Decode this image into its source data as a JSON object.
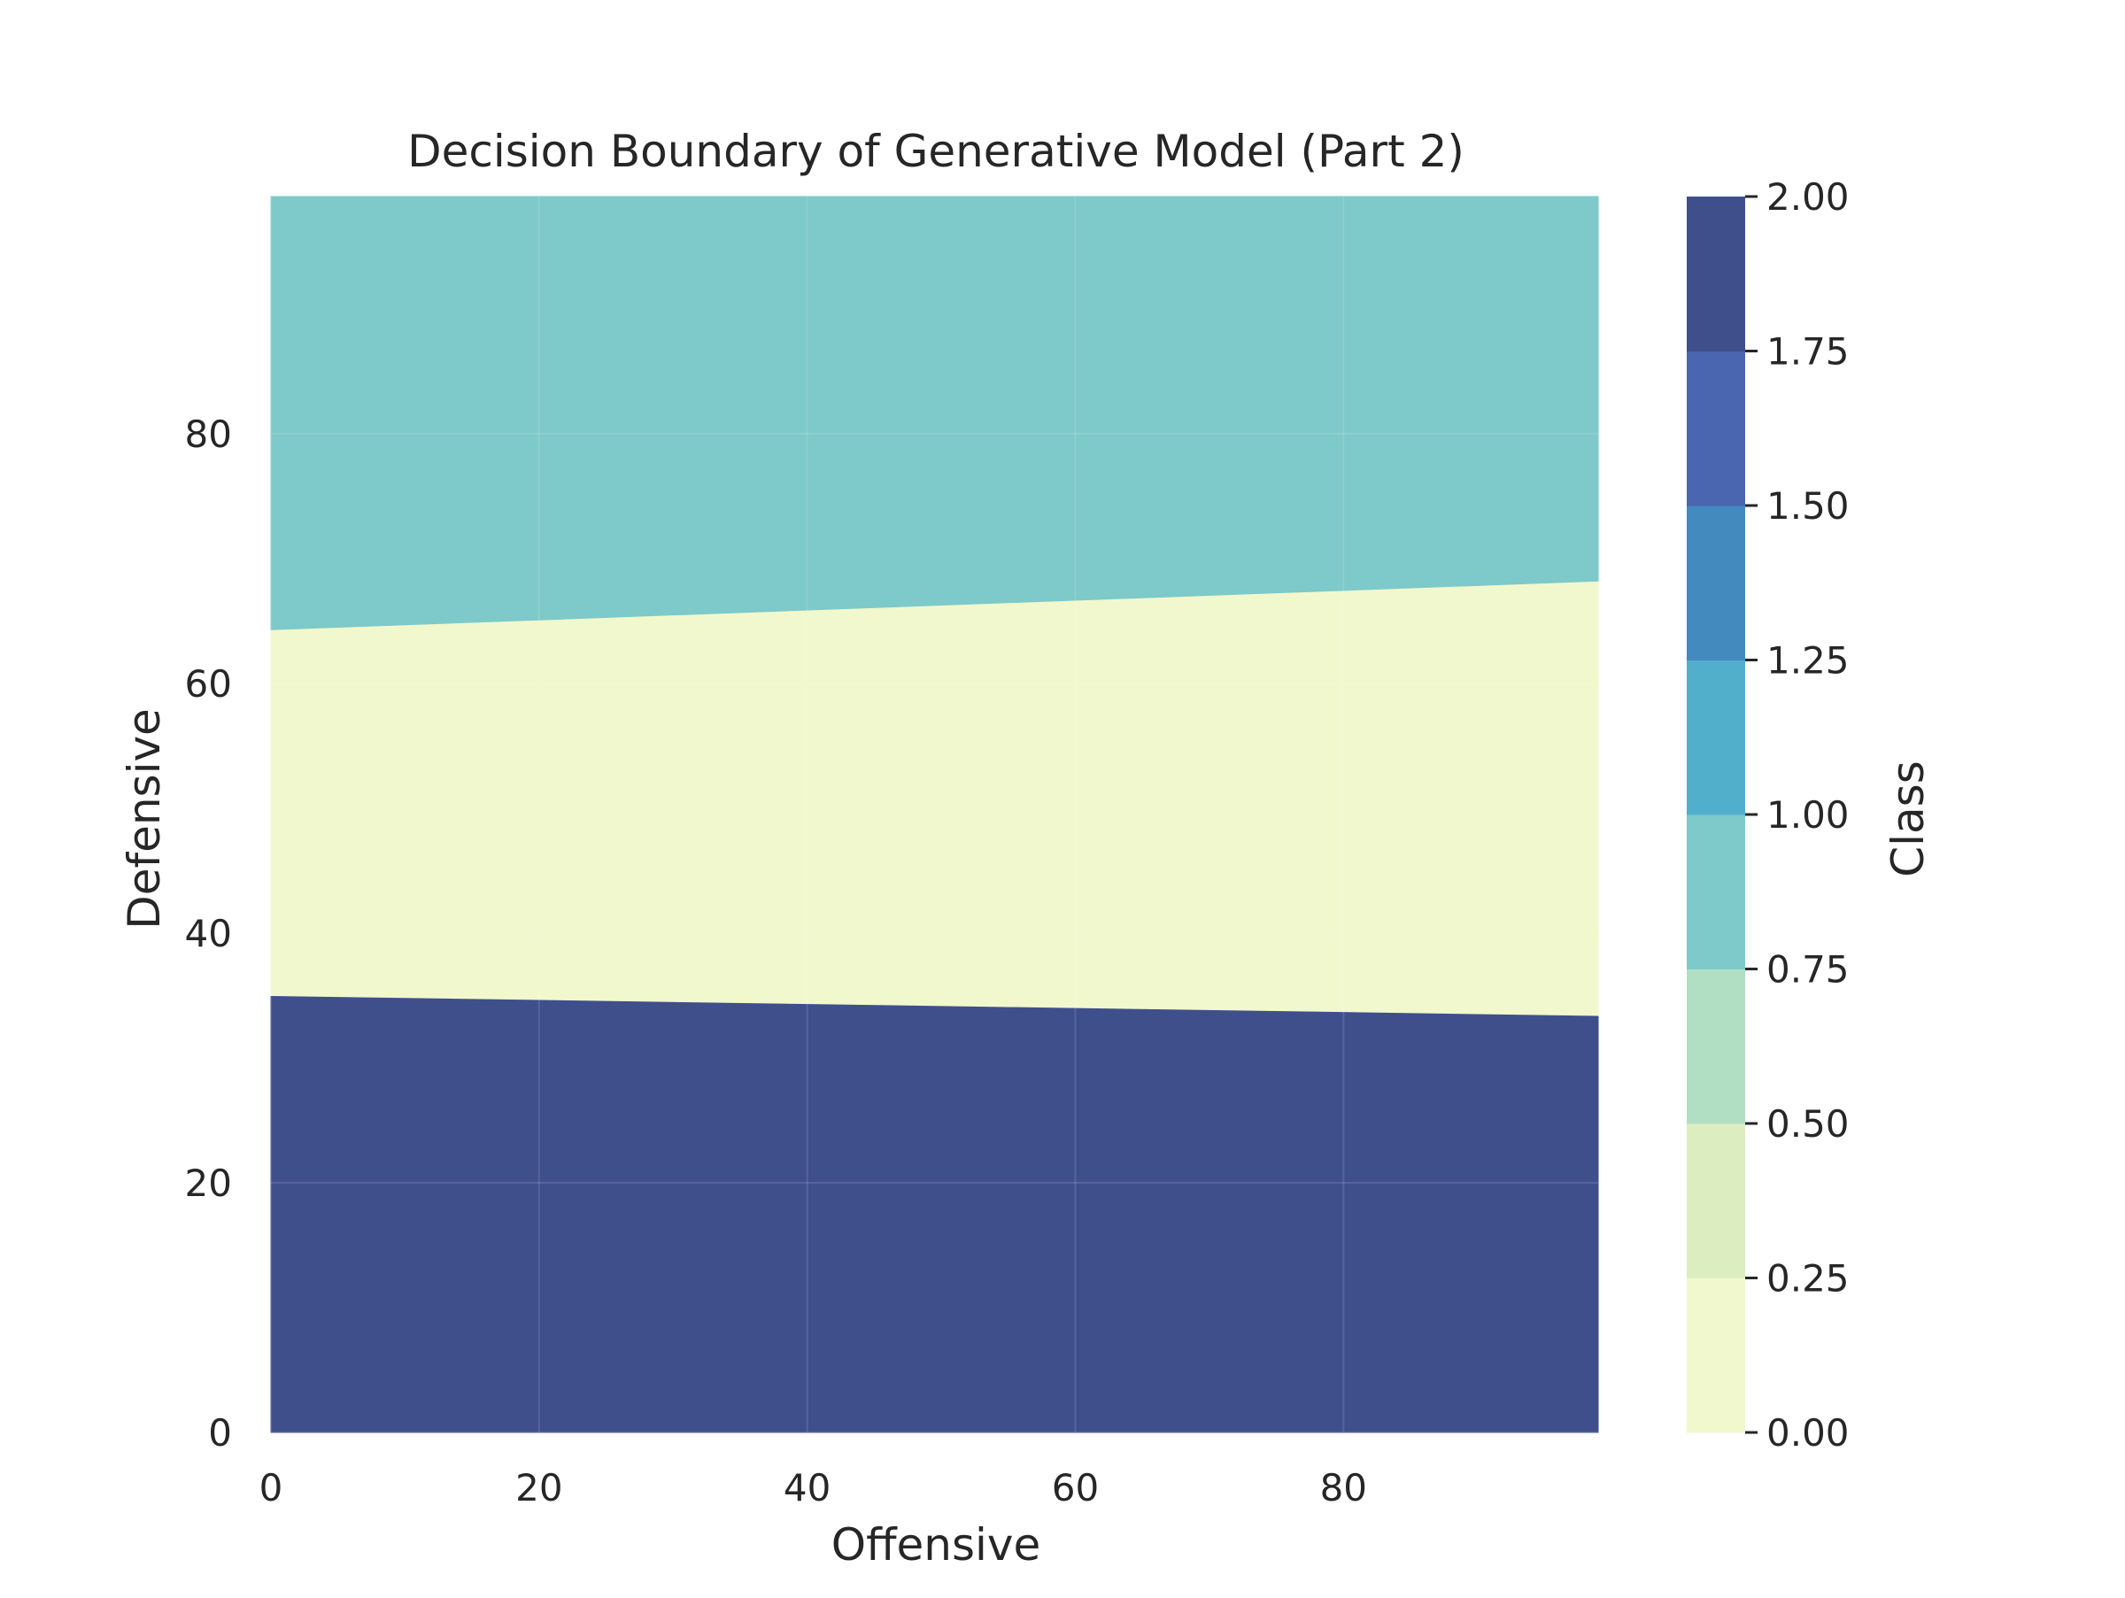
{
  "chart_data": {
    "type": "contour",
    "title": "Decision Boundary of Generative Model (Part 2)",
    "xlabel": "Offensive",
    "ylabel": "Defensive",
    "xlim": [
      0,
      99
    ],
    "ylim": [
      0,
      99
    ],
    "xticks": [
      "0",
      "20",
      "40",
      "60",
      "80"
    ],
    "xtick_values": [
      0,
      20,
      40,
      60,
      80
    ],
    "yticks": [
      "0",
      "20",
      "40",
      "60",
      "80"
    ],
    "ytick_values": [
      0,
      20,
      40,
      60,
      80
    ],
    "grid": true,
    "regions": [
      {
        "class": 2,
        "color": "#3f4f8c",
        "lower_boundary": [
          [
            0,
            0
          ],
          [
            99,
            0
          ]
        ],
        "upper_boundary": [
          [
            0,
            35.0
          ],
          [
            99,
            33.4
          ]
        ]
      },
      {
        "class": 0,
        "color": "#f2f8cd",
        "lower_boundary": [
          [
            0,
            35.0
          ],
          [
            99,
            33.4
          ]
        ],
        "upper_boundary": [
          [
            0,
            64.3
          ],
          [
            99,
            68.2
          ]
        ]
      },
      {
        "class": 1,
        "color": "#7ec9c9",
        "lower_boundary": [
          [
            0,
            64.3
          ],
          [
            99,
            68.2
          ]
        ],
        "upper_boundary": [
          [
            0,
            99
          ],
          [
            99,
            99
          ]
        ]
      }
    ],
    "colorbar": {
      "label": "Class",
      "ticks": [
        "0.00",
        "0.25",
        "0.50",
        "0.75",
        "1.00",
        "1.25",
        "1.50",
        "1.75",
        "2.00"
      ],
      "levels": [
        0,
        0.25,
        0.5,
        0.75,
        1.0,
        1.25,
        1.5,
        1.75,
        2.0
      ],
      "colors": [
        "#f2f8cd",
        "#dceebf",
        "#b1dfc3",
        "#7ec9c9",
        "#52afcc",
        "#438abf",
        "#4a66b0",
        "#3f4f8c"
      ]
    }
  }
}
